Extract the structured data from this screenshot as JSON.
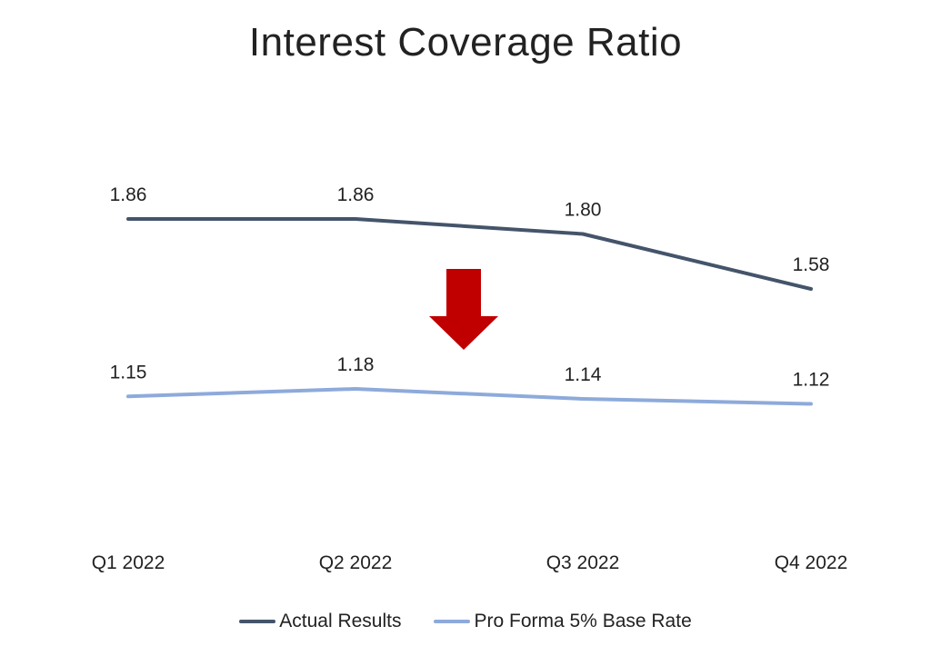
{
  "chart_data": {
    "type": "line",
    "title": "Interest Coverage Ratio",
    "categories": [
      "Q1 2022",
      "Q2 2022",
      "Q3 2022",
      "Q4 2022"
    ],
    "series": [
      {
        "name": "Actual Results",
        "values": [
          1.86,
          1.86,
          1.8,
          1.58
        ],
        "labels": [
          "1.86",
          "1.86",
          "1.80",
          "1.58"
        ],
        "color": "#44546a"
      },
      {
        "name": "Pro Forma 5% Base Rate",
        "values": [
          1.15,
          1.18,
          1.14,
          1.12
        ],
        "labels": [
          "1.15",
          "1.18",
          "1.14",
          "1.12"
        ],
        "color": "#8eaadb"
      }
    ],
    "annotations": [
      {
        "type": "down-arrow",
        "color": "#c00000"
      }
    ],
    "legend_position": "bottom",
    "grid": false,
    "ylim": [
      0.5,
      2.5
    ]
  }
}
